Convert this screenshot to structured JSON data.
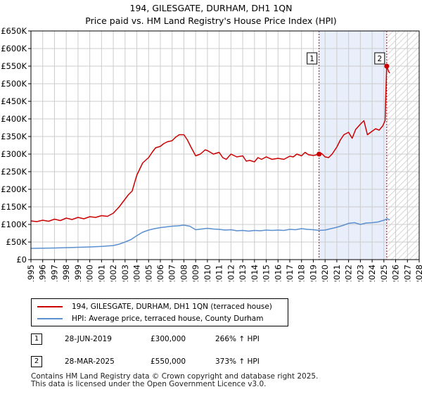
{
  "title": "194, GILESGATE, DURHAM, DH1 1QN",
  "subtitle": "Price paid vs. HM Land Registry's House Price Index (HPI)",
  "chart_data": {
    "type": "line",
    "xlim": [
      1995,
      2028
    ],
    "ylim": [
      0,
      650000
    ],
    "y_ticks": [
      {
        "value": 0,
        "label": "£0"
      },
      {
        "value": 50000,
        "label": "£50K"
      },
      {
        "value": 100000,
        "label": "£100K"
      },
      {
        "value": 150000,
        "label": "£150K"
      },
      {
        "value": 200000,
        "label": "£200K"
      },
      {
        "value": 250000,
        "label": "£250K"
      },
      {
        "value": 300000,
        "label": "£300K"
      },
      {
        "value": 350000,
        "label": "£350K"
      },
      {
        "value": 400000,
        "label": "£400K"
      },
      {
        "value": 450000,
        "label": "£450K"
      },
      {
        "value": 500000,
        "label": "£500K"
      },
      {
        "value": 550000,
        "label": "£550K"
      },
      {
        "value": 600000,
        "label": "£600K"
      },
      {
        "value": 650000,
        "label": "£650K"
      }
    ],
    "x_ticks": [
      "1995",
      "1996",
      "1997",
      "1998",
      "1999",
      "2000",
      "2001",
      "2002",
      "2003",
      "2004",
      "2005",
      "2006",
      "2007",
      "2008",
      "2009",
      "2010",
      "2011",
      "2012",
      "2013",
      "2014",
      "2015",
      "2016",
      "2017",
      "2018",
      "2019",
      "2020",
      "2021",
      "2022",
      "2023",
      "2024",
      "2025",
      "2026",
      "2027",
      "2028"
    ],
    "grid": true,
    "shaded_span": [
      2019.49,
      2025.24
    ],
    "hatched_span": [
      2025.24,
      2028
    ],
    "series": [
      {
        "name": "194, GILESGATE, DURHAM, DH1 1QN (terraced house)",
        "color": "#cc0000",
        "x": [
          1995.0,
          1995.5,
          1996.0,
          1996.5,
          1997.0,
          1997.5,
          1998.0,
          1998.5,
          1999.0,
          1999.5,
          2000.0,
          2000.5,
          2001.0,
          2001.5,
          2002.0,
          2002.5,
          2003.0,
          2003.3,
          2003.6,
          2004.0,
          2004.5,
          2005.0,
          2005.3,
          2005.6,
          2006.0,
          2006.3,
          2006.6,
          2007.0,
          2007.3,
          2007.6,
          2008.0,
          2008.3,
          2008.6,
          2009.0,
          2009.4,
          2009.8,
          2010.0,
          2010.5,
          2011.0,
          2011.3,
          2011.6,
          2012.0,
          2012.5,
          2013.0,
          2013.3,
          2013.6,
          2014.0,
          2014.3,
          2014.6,
          2015.0,
          2015.5,
          2016.0,
          2016.5,
          2017.0,
          2017.3,
          2017.6,
          2018.0,
          2018.3,
          2018.6,
          2019.0,
          2019.3,
          2019.49,
          2019.7,
          2020.0,
          2020.3,
          2020.6,
          2021.0,
          2021.3,
          2021.6,
          2022.0,
          2022.3,
          2022.6,
          2023.0,
          2023.3,
          2023.6,
          2024.0,
          2024.3,
          2024.6,
          2024.9,
          2025.1,
          2025.24,
          2025.4,
          2025.5
        ],
        "values": [
          110000,
          108000,
          112000,
          109000,
          115000,
          111000,
          118000,
          114000,
          120000,
          116000,
          122000,
          120000,
          125000,
          123000,
          132000,
          150000,
          172000,
          185000,
          195000,
          240000,
          275000,
          290000,
          305000,
          318000,
          322000,
          330000,
          335000,
          338000,
          348000,
          355000,
          355000,
          340000,
          320000,
          295000,
          300000,
          312000,
          310000,
          300000,
          305000,
          290000,
          285000,
          300000,
          292000,
          295000,
          280000,
          282000,
          278000,
          290000,
          285000,
          292000,
          285000,
          288000,
          285000,
          294000,
          292000,
          300000,
          295000,
          305000,
          298000,
          296000,
          298000,
          300000,
          302000,
          292000,
          290000,
          300000,
          320000,
          340000,
          355000,
          362000,
          345000,
          370000,
          385000,
          395000,
          355000,
          365000,
          372000,
          368000,
          380000,
          395000,
          550000,
          535000,
          530000
        ]
      },
      {
        "name": "HPI: Average price, terraced house, County Durham",
        "color": "#5b8fd0",
        "x": [
          1995.0,
          1996.0,
          1997.0,
          1998.0,
          1999.0,
          2000.0,
          2001.0,
          2002.0,
          2002.5,
          2003.0,
          2003.5,
          2004.0,
          2004.5,
          2005.0,
          2005.5,
          2006.0,
          2006.5,
          2007.0,
          2007.5,
          2008.0,
          2008.5,
          2009.0,
          2009.5,
          2010.0,
          2010.5,
          2011.0,
          2011.5,
          2012.0,
          2012.5,
          2013.0,
          2013.5,
          2014.0,
          2014.5,
          2015.0,
          2015.5,
          2016.0,
          2016.5,
          2017.0,
          2017.5,
          2018.0,
          2018.5,
          2019.0,
          2019.5,
          2020.0,
          2020.5,
          2021.0,
          2021.5,
          2022.0,
          2022.5,
          2023.0,
          2023.5,
          2024.0,
          2024.5,
          2025.0,
          2025.3,
          2025.5
        ],
        "values": [
          32000,
          32500,
          33000,
          34000,
          35000,
          36000,
          37500,
          40000,
          44000,
          50000,
          57000,
          68000,
          78000,
          84000,
          88000,
          91000,
          93000,
          95000,
          96000,
          98000,
          95000,
          85000,
          87000,
          89000,
          87000,
          86000,
          84000,
          85000,
          82000,
          83000,
          81000,
          83000,
          82000,
          84000,
          83000,
          84000,
          83000,
          86000,
          85000,
          88000,
          86000,
          85000,
          83000,
          84000,
          88000,
          92000,
          97000,
          103000,
          105000,
          100000,
          104000,
          105000,
          107000,
          112000,
          116000,
          113000
        ]
      }
    ],
    "markers": [
      {
        "id": "1",
        "x": 2019.49,
        "price": 300000
      },
      {
        "id": "2",
        "x": 2025.24,
        "price": 550000
      }
    ],
    "colors": {
      "shade": "#e8eefa",
      "grid": "#cccccc",
      "marker_line": "#cc0000"
    }
  },
  "legend": [
    {
      "label": "194, GILESGATE, DURHAM, DH1 1QN (terraced house)",
      "color": "#cc0000"
    },
    {
      "label": "HPI: Average price, terraced house, County Durham",
      "color": "#5b8fd0"
    }
  ],
  "transactions": [
    {
      "id": "1",
      "date": "28-JUN-2019",
      "price": "£300,000",
      "hpi": "266% ↑ HPI"
    },
    {
      "id": "2",
      "date": "28-MAR-2025",
      "price": "£550,000",
      "hpi": "373% ↑ HPI"
    }
  ],
  "footer": {
    "line1": "Contains HM Land Registry data © Crown copyright and database right 2025.",
    "line2": "This data is licensed under the Open Government Licence v3.0."
  }
}
